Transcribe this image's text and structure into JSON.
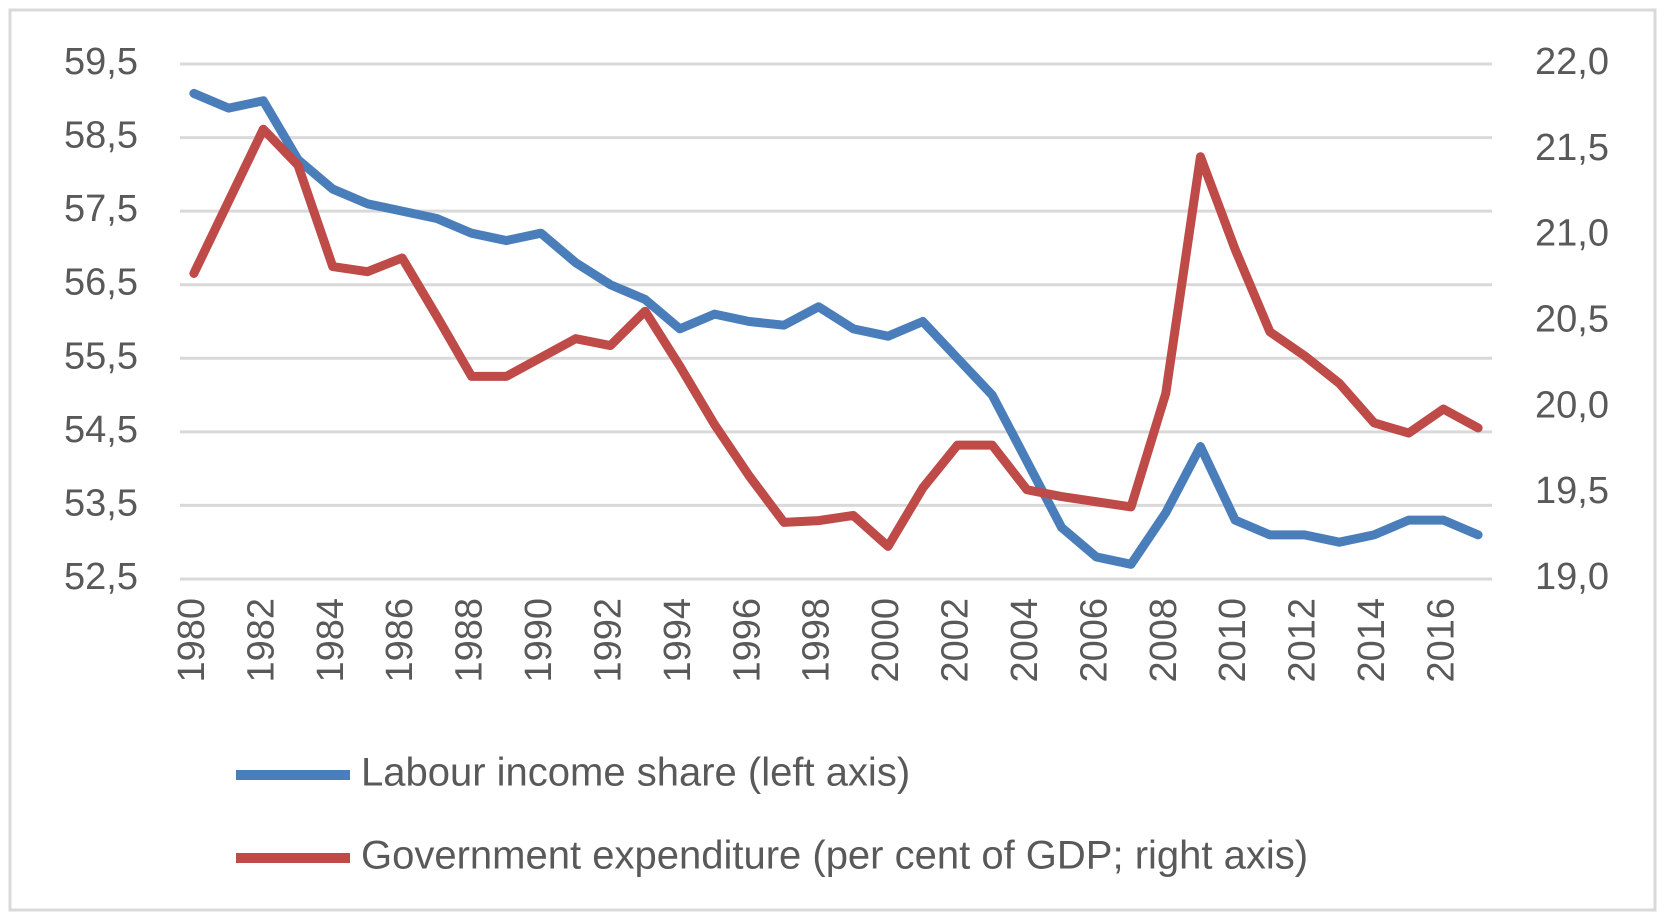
{
  "chart_data": {
    "type": "line",
    "x": [
      1980,
      1981,
      1982,
      1983,
      1984,
      1985,
      1986,
      1987,
      1988,
      1989,
      1990,
      1991,
      1992,
      1993,
      1994,
      1995,
      1996,
      1997,
      1998,
      1999,
      2000,
      2001,
      2002,
      2003,
      2004,
      2005,
      2006,
      2007,
      2008,
      2009,
      2010,
      2011,
      2012,
      2013,
      2014,
      2015,
      2016,
      2017
    ],
    "series": [
      {
        "name": "Labour income share (left axis)",
        "color": "#4a7ebb",
        "axis": "y",
        "values": [
          59.1,
          58.9,
          59.0,
          58.2,
          57.8,
          57.6,
          57.5,
          57.4,
          57.2,
          57.1,
          57.2,
          56.8,
          56.5,
          56.3,
          55.9,
          56.1,
          56.0,
          55.95,
          56.2,
          55.9,
          55.8,
          56.0,
          55.5,
          55.0,
          54.1,
          53.2,
          52.8,
          52.7,
          53.4,
          54.3,
          53.3,
          53.1,
          53.1,
          53.0,
          53.1,
          53.3,
          53.3,
          53.1
        ]
      },
      {
        "name": "Government expenditure (per cent of GDP; right axis)",
        "color": "#be4b48",
        "axis": "y2",
        "values": [
          20.78,
          21.2,
          21.62,
          21.41,
          20.82,
          20.79,
          20.87,
          20.53,
          20.18,
          20.18,
          20.29,
          20.4,
          20.36,
          20.56,
          20.24,
          19.9,
          19.6,
          19.33,
          19.34,
          19.37,
          19.19,
          19.53,
          19.78,
          19.78,
          19.52,
          19.48,
          19.45,
          19.42,
          20.08,
          21.46,
          20.92,
          20.44,
          20.3,
          20.14,
          19.91,
          19.85,
          19.99,
          19.88
        ]
      }
    ],
    "xlim": [
      1979.6,
      2017.4
    ],
    "xticks": [
      1980,
      1982,
      1984,
      1986,
      1988,
      1990,
      1992,
      1994,
      1996,
      1998,
      2000,
      2002,
      2004,
      2006,
      2008,
      2010,
      2012,
      2014,
      2016
    ],
    "ylim": [
      52.5,
      59.5
    ],
    "yticks": [
      {
        "value": 52.5,
        "label": "52,5"
      },
      {
        "value": 53.5,
        "label": "53,5"
      },
      {
        "value": 54.5,
        "label": "54,5"
      },
      {
        "value": 55.5,
        "label": "55,5"
      },
      {
        "value": 56.5,
        "label": "56,5"
      },
      {
        "value": 57.5,
        "label": "57,5"
      },
      {
        "value": 58.5,
        "label": "58,5"
      },
      {
        "value": 59.5,
        "label": "59,5"
      }
    ],
    "y2lim": [
      19.0,
      22.0
    ],
    "y2ticks": [
      {
        "value": 19.0,
        "label": "19,0"
      },
      {
        "value": 19.5,
        "label": "19,5"
      },
      {
        "value": 20.0,
        "label": "20,0"
      },
      {
        "value": 20.5,
        "label": "20,5"
      },
      {
        "value": 21.0,
        "label": "21,0"
      },
      {
        "value": 21.5,
        "label": "21,5"
      },
      {
        "value": 22.0,
        "label": "22,0"
      }
    ],
    "grid": true,
    "legend": "bottom"
  }
}
